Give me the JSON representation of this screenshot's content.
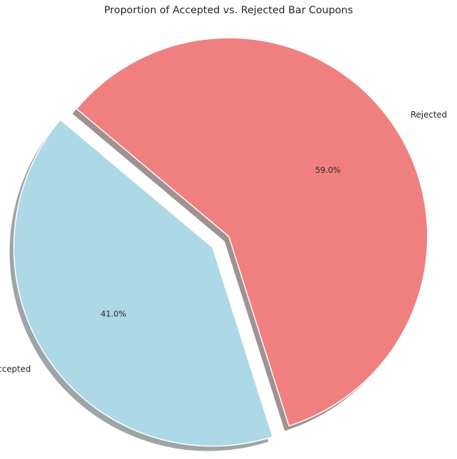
{
  "chart_data": {
    "type": "pie",
    "title": "Proportion of Accepted vs. Rejected Bar Coupons",
    "slices": [
      {
        "label": "Accepted",
        "value": 41.0,
        "pct_label": "41.0%",
        "color": "#add8e6",
        "exploded": true
      },
      {
        "label": "Rejected",
        "value": 59.0,
        "pct_label": "59.0%",
        "color": "#f08080",
        "exploded": false
      }
    ],
    "shadow": true,
    "start_angle_deg": 140
  }
}
